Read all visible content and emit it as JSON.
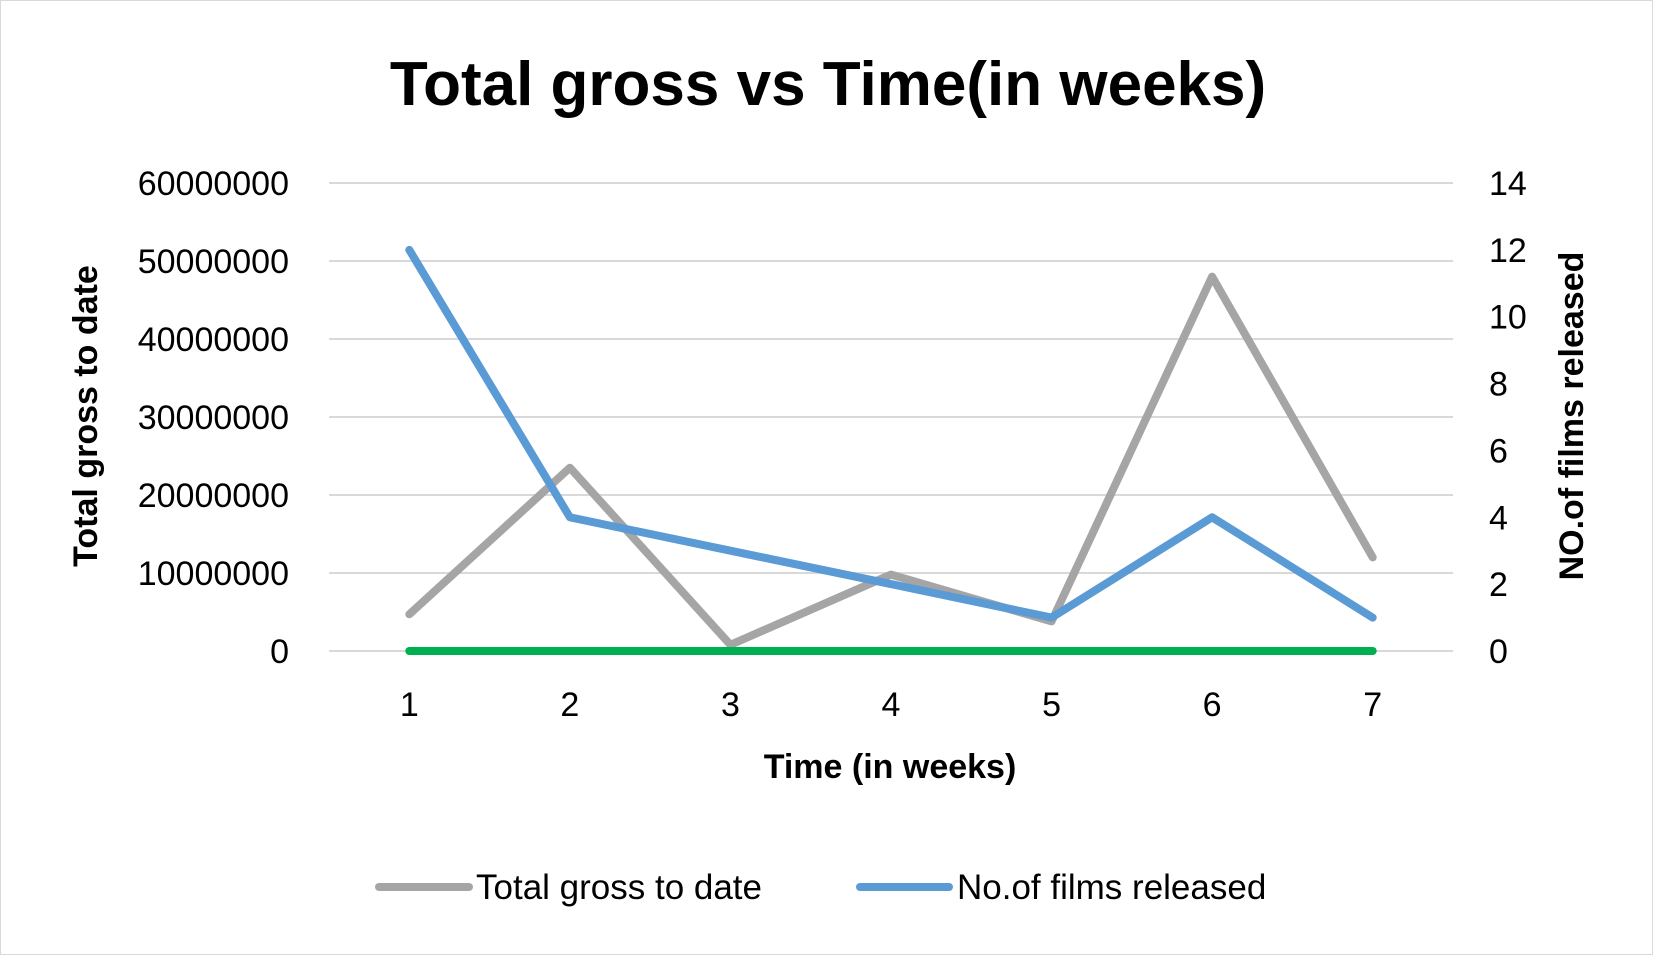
{
  "chart_data": {
    "type": "line",
    "title": "Total gross vs Time(in weeks)",
    "xlabel": "Time (in weeks)",
    "ylabel": "Total gross to date",
    "y2label": "NO.of films released",
    "categories": [
      "1",
      "2",
      "3",
      "4",
      "5",
      "6",
      "7"
    ],
    "ylim": [
      0,
      60000000
    ],
    "yticks": [
      "0",
      "10000000",
      "20000000",
      "30000000",
      "40000000",
      "50000000",
      "60000000"
    ],
    "y2lim": [
      0,
      14
    ],
    "y2ticks": [
      "0",
      "2",
      "4",
      "6",
      "8",
      "10",
      "12",
      "14"
    ],
    "grid": true,
    "legend_position": "bottom",
    "series": [
      {
        "name": "Total gross to date",
        "axis": "left",
        "color": "#a5a5a5",
        "values": [
          4700000,
          23500000,
          800000,
          9800000,
          3800000,
          48000000,
          12000000
        ]
      },
      {
        "name": "No.of films released",
        "axis": "right",
        "color": "#5b9bd5",
        "values": [
          12,
          4,
          3,
          2,
          1,
          4,
          1
        ]
      },
      {
        "name": "",
        "axis": "left",
        "color": "#00b050",
        "values": [
          0,
          0,
          0,
          0,
          0,
          0,
          0
        ]
      }
    ],
    "legend": [
      {
        "label": "Total gross to date",
        "color": "#a5a5a5"
      },
      {
        "label": "No.of films released",
        "color": "#5b9bd5"
      }
    ]
  }
}
